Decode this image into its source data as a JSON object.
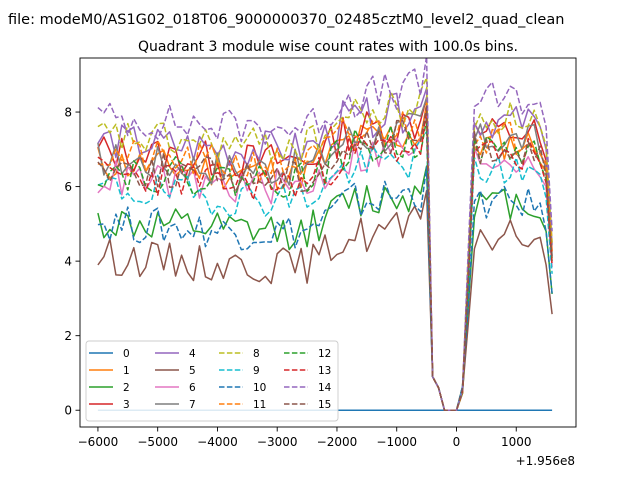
{
  "chart_data": {
    "type": "line",
    "suptitle": "file: modeM0/AS1G02_018T06_9000000370_02485cztM0_level2_quad_clean",
    "title": "Quadrant 3 module wise count rates with 100.0s bins.",
    "x_offset_label": "+1.956e8",
    "xlim": [
      -6300,
      2000
    ],
    "ylim": [
      -0.45,
      9.45
    ],
    "xticks": [
      -6000,
      -5000,
      -4000,
      -3000,
      -2000,
      -1000,
      0,
      1000
    ],
    "xtick_labels": [
      "−6000",
      "−5000",
      "−4000",
      "−3000",
      "−2000",
      "−1000",
      "0",
      "1000"
    ],
    "yticks": [
      0,
      2,
      4,
      6,
      8
    ],
    "ytick_labels": [
      "0",
      "2",
      "4",
      "6",
      "8"
    ],
    "legend_location": "lower-left",
    "legend_columns": 4,
    "x_start": -6000,
    "x_step": 100,
    "series": [
      {
        "name": "0",
        "color": "#1f77b4",
        "dash": "solid",
        "mode": "constant",
        "value": 0.0
      },
      {
        "name": "1",
        "color": "#ff7f0e",
        "dash": "solid",
        "mode": "profile",
        "base": 6.8,
        "seed": 11
      },
      {
        "name": "2",
        "color": "#2ca02c",
        "dash": "solid",
        "mode": "profile",
        "base": 5.2,
        "seed": 12
      },
      {
        "name": "3",
        "color": "#d62728",
        "dash": "solid",
        "mode": "profile",
        "base": 7.1,
        "seed": 13
      },
      {
        "name": "4",
        "color": "#9467bd",
        "dash": "solid",
        "mode": "profile",
        "base": 7.4,
        "seed": 14
      },
      {
        "name": "5",
        "color": "#8c564b",
        "dash": "solid",
        "mode": "profile",
        "base": 4.3,
        "seed": 15
      },
      {
        "name": "6",
        "color": "#e377c2",
        "dash": "solid",
        "mode": "profile",
        "base": 6.4,
        "seed": 16
      },
      {
        "name": "7",
        "color": "#7f7f7f",
        "dash": "solid",
        "mode": "profile",
        "base": 6.9,
        "seed": 17
      },
      {
        "name": "8",
        "color": "#bcbd22",
        "dash": "dashed",
        "mode": "profile",
        "base": 7.5,
        "seed": 18
      },
      {
        "name": "9",
        "color": "#17becf",
        "dash": "dashed",
        "mode": "profile",
        "base": 6.1,
        "seed": 19
      },
      {
        "name": "10",
        "color": "#1f77b4",
        "dash": "dashed",
        "mode": "profile",
        "base": 5.2,
        "seed": 20
      },
      {
        "name": "11",
        "color": "#ff7f0e",
        "dash": "dashed",
        "mode": "profile",
        "base": 7.0,
        "seed": 21
      },
      {
        "name": "12",
        "color": "#2ca02c",
        "dash": "dashed",
        "mode": "profile",
        "base": 6.6,
        "seed": 22
      },
      {
        "name": "13",
        "color": "#d62728",
        "dash": "dashed",
        "mode": "profile",
        "base": 6.5,
        "seed": 23
      },
      {
        "name": "14",
        "color": "#9467bd",
        "dash": "dashed",
        "mode": "profile",
        "base": 8.0,
        "seed": 24
      },
      {
        "name": "15",
        "color": "#8c564b",
        "dash": "dashed",
        "mode": "profile",
        "base": 6.7,
        "seed": 25
      }
    ]
  }
}
